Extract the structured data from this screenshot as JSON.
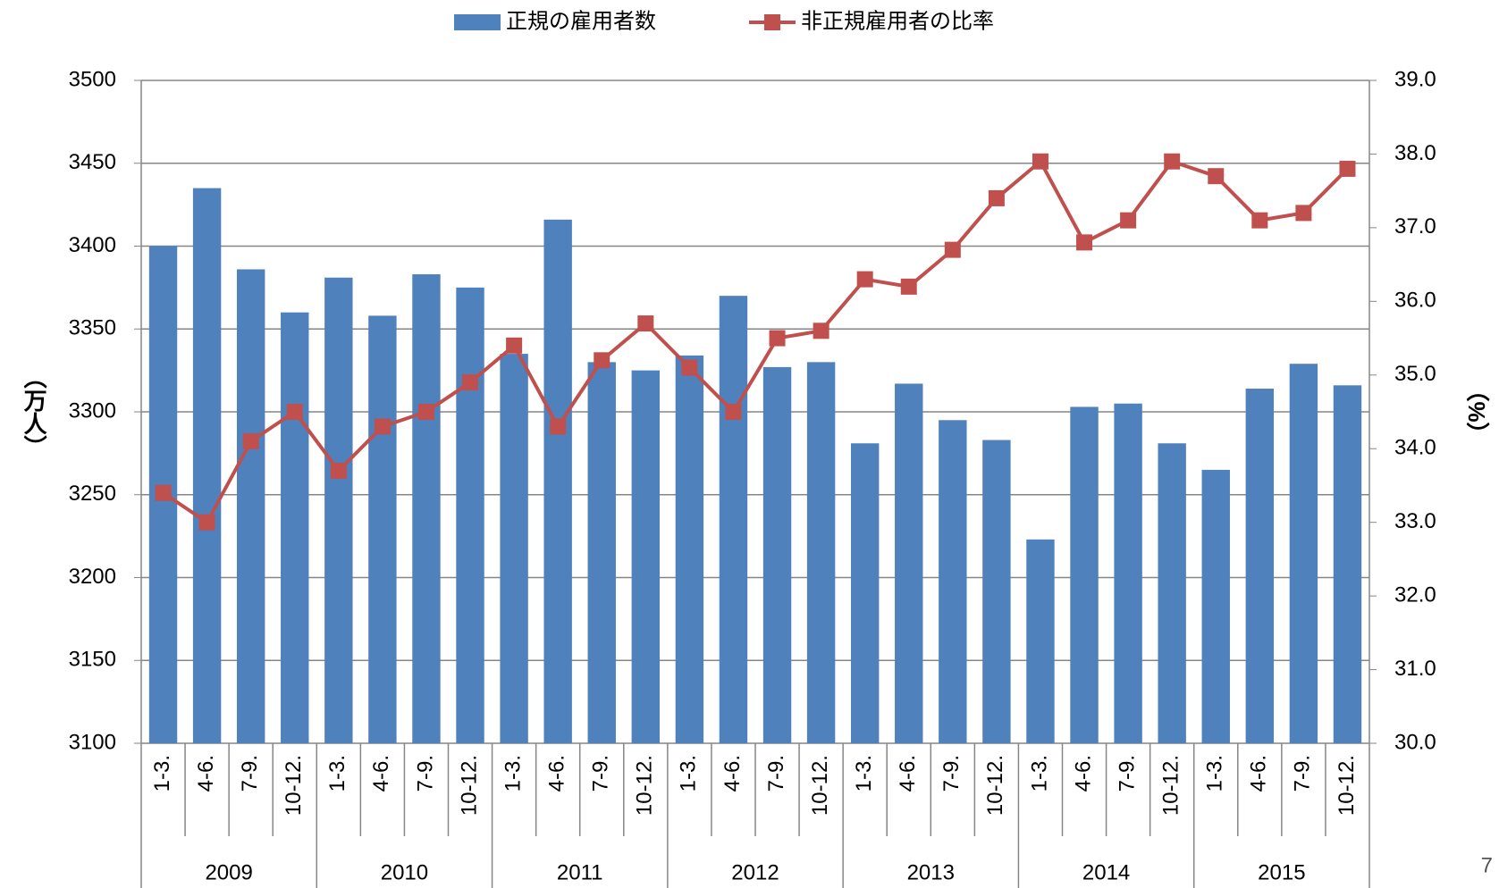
{
  "chart_data": {
    "type": "bar_line",
    "categories": [
      "1-3.",
      "4-6.",
      "7-9.",
      "10-12.",
      "1-3.",
      "4-6.",
      "7-9.",
      "10-12.",
      "1-3.",
      "4-6.",
      "7-9.",
      "10-12.",
      "1-3.",
      "4-6.",
      "7-9.",
      "10-12.",
      "1-3.",
      "4-6.",
      "7-9.",
      "10-12.",
      "1-3.",
      "4-6.",
      "7-9.",
      "10-12.",
      "1-3.",
      "4-6.",
      "7-9.",
      "10-12."
    ],
    "year_groups": [
      "2009",
      "2010",
      "2011",
      "2012",
      "2013",
      "2014",
      "2015"
    ],
    "series": [
      {
        "name": "正規の雇用者数",
        "color": "#4f81bd",
        "type": "bar",
        "values": [
          3400,
          3435,
          3386,
          3360,
          3381,
          3358,
          3383,
          3375,
          3335,
          3416,
          3330,
          3325,
          3334,
          3370,
          3327,
          3330,
          3281,
          3317,
          3295,
          3283,
          3223,
          3303,
          3305,
          3281,
          3265,
          3314,
          3329,
          3316
        ]
      },
      {
        "name": "非正規雇用者の比率",
        "color": "#c0504d",
        "type": "line",
        "axis": "y2",
        "values": [
          33.4,
          33.0,
          34.1,
          34.5,
          33.7,
          34.3,
          34.5,
          34.9,
          35.4,
          34.3,
          35.2,
          35.7,
          35.1,
          34.5,
          35.5,
          35.6,
          36.3,
          36.2,
          36.7,
          37.4,
          37.9,
          36.8,
          37.1,
          37.9,
          37.7,
          37.1,
          37.2,
          37.8
        ]
      }
    ],
    "y_label": "（万人）",
    "y2_label": "（%）",
    "ylim": [
      3100,
      3500
    ],
    "yticks": [
      3100,
      3150,
      3200,
      3250,
      3300,
      3350,
      3400,
      3450,
      3500
    ],
    "y2lim": [
      30,
      39
    ],
    "y2ticks": [
      {
        "value": 30,
        "label": "30.0"
      },
      {
        "value": 31,
        "label": "31.0"
      },
      {
        "value": 32,
        "label": "32.0"
      },
      {
        "value": 33,
        "label": "33.0"
      },
      {
        "value": 34,
        "label": "34.0"
      },
      {
        "value": 35,
        "label": "35.0"
      },
      {
        "value": 36,
        "label": "36.0"
      },
      {
        "value": 37,
        "label": "37.0"
      },
      {
        "value": 38,
        "label": "38.0"
      },
      {
        "value": 39,
        "label": "39.0"
      }
    ],
    "grid": true,
    "legend": "top",
    "page_number": "7"
  }
}
